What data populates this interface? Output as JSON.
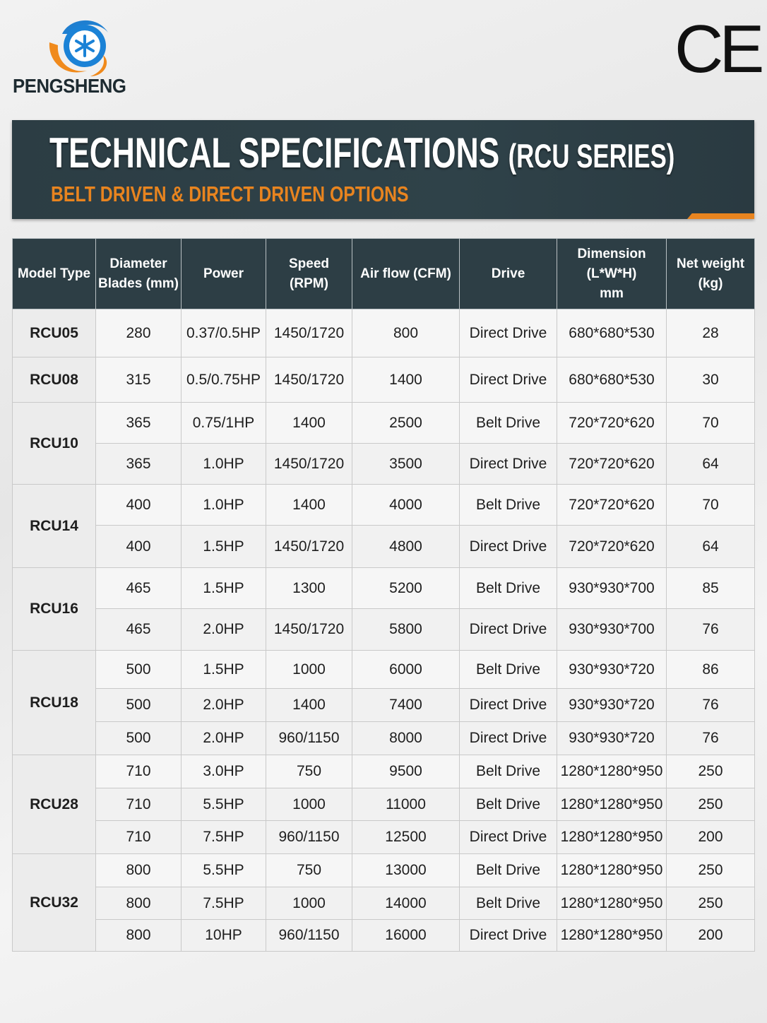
{
  "header": {
    "brand": "PENGSHENG",
    "mark": "CE",
    "title": "TECHNICAL SPECIFICATIONS",
    "title_suffix": "(RCU SERIES)",
    "subtitle": "BELT DRIVEN & DIRECT DRIVEN OPTIONS"
  },
  "table": {
    "columns": [
      [
        "Model Type"
      ],
      [
        "Diameter",
        "Blades (mm)"
      ],
      [
        "Power"
      ],
      [
        "Speed",
        "(RPM)"
      ],
      [
        "Air flow (CFM)"
      ],
      [
        "Drive"
      ],
      [
        "Dimension",
        "(L*W*H)",
        "mm"
      ],
      [
        "Net weight",
        "(kg)"
      ]
    ],
    "groups": [
      {
        "model": "RCU05",
        "rows": [
          [
            280,
            "0.37/0.5HP",
            "1450/1720",
            800,
            "Direct Drive",
            "680*680*530",
            28
          ]
        ]
      },
      {
        "model": "RCU08",
        "rows": [
          [
            315,
            "0.5/0.75HP",
            "1450/1720",
            1400,
            "Direct Drive",
            "680*680*530",
            30
          ]
        ]
      },
      {
        "model": "RCU10",
        "rows": [
          [
            365,
            "0.75/1HP",
            "1400",
            2500,
            "Belt Drive",
            "720*720*620",
            70
          ],
          [
            365,
            "1.0HP",
            "1450/1720",
            3500,
            "Direct Drive",
            "720*720*620",
            64
          ]
        ]
      },
      {
        "model": "RCU14",
        "rows": [
          [
            400,
            "1.0HP",
            "1400",
            4000,
            "Belt Drive",
            "720*720*620",
            70
          ],
          [
            400,
            "1.5HP",
            "1450/1720",
            4800,
            "Direct Drive",
            "720*720*620",
            64
          ]
        ]
      },
      {
        "model": "RCU16",
        "rows": [
          [
            465,
            "1.5HP",
            "1300",
            5200,
            "Belt Drive",
            "930*930*700",
            85
          ],
          [
            465,
            "2.0HP",
            "1450/1720",
            5800,
            "Direct Drive",
            "930*930*700",
            76
          ]
        ]
      },
      {
        "model": "RCU18",
        "rows": [
          [
            500,
            "1.5HP",
            "1000",
            6000,
            "Belt Drive",
            "930*930*720",
            86
          ],
          [
            500,
            "2.0HP",
            "1400",
            7400,
            "Direct Drive",
            "930*930*720",
            76
          ],
          [
            500,
            "2.0HP",
            "960/1150",
            8000,
            "Direct Drive",
            "930*930*720",
            76
          ]
        ]
      },
      {
        "model": "RCU28",
        "rows": [
          [
            710,
            "3.0HP",
            "750",
            9500,
            "Belt Drive",
            "1280*1280*950",
            250
          ],
          [
            710,
            "5.5HP",
            "1000",
            11000,
            "Belt Drive",
            "1280*1280*950",
            250
          ],
          [
            710,
            "7.5HP",
            "960/1150",
            12500,
            "Direct Drive",
            "1280*1280*950",
            200
          ]
        ]
      },
      {
        "model": "RCU32",
        "rows": [
          [
            800,
            "5.5HP",
            "750",
            13000,
            "Belt Drive",
            "1280*1280*950",
            250
          ],
          [
            800,
            "7.5HP",
            "1000",
            14000,
            "Belt Drive",
            "1280*1280*950",
            250
          ],
          [
            800,
            "10HP",
            "960/1150",
            16000,
            "Direct Drive",
            "1280*1280*950",
            200
          ]
        ]
      }
    ]
  }
}
